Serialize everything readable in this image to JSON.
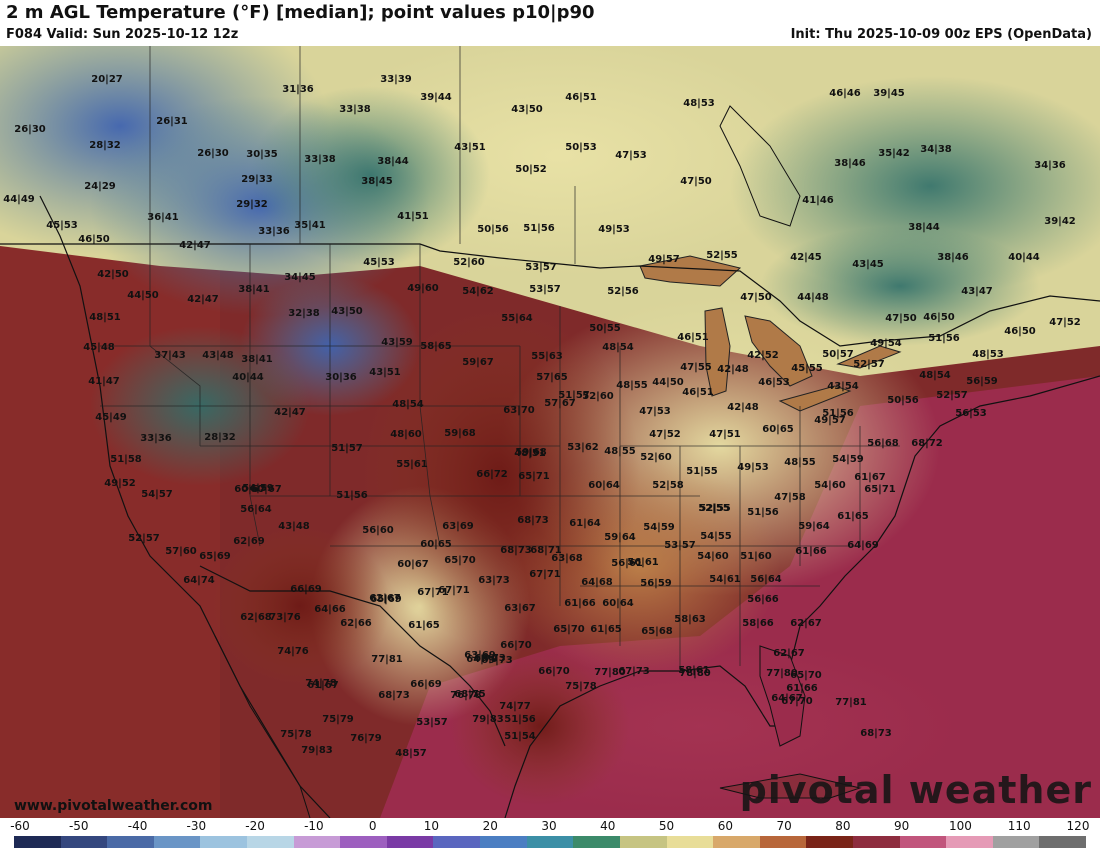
{
  "header": {
    "title": "2 m AGL Temperature (°F) [median]; point values p10|p90",
    "valid": "F084 Valid: Sun 2025-10-12 12z",
    "init": "Init: Thu 2025-10-09 00z EPS (OpenData)"
  },
  "footer": {
    "site": "www.pivotalweather.com",
    "watermark": "pivotal weather"
  },
  "colorbar": {
    "ticks": [
      "-60",
      "-50",
      "-40",
      "-30",
      "-20",
      "-10",
      "0",
      "10",
      "20",
      "30",
      "40",
      "50",
      "60",
      "70",
      "80",
      "90",
      "100",
      "110",
      "120"
    ],
    "colors": [
      "#1e2a55",
      "#34477e",
      "#4a6aa6",
      "#6a95c6",
      "#9cc3df",
      "#b8d6e6",
      "#c79bd6",
      "#9d5fbf",
      "#7a3aa5",
      "#5a66bf",
      "#4b7ec2",
      "#3c8fa6",
      "#3c8a6a",
      "#c6c482",
      "#e8dd98",
      "#d8a86a",
      "#b8673a",
      "#7a2418",
      "#8e2d3f",
      "#c1557c",
      "#e59ab6",
      "#a0a0a0",
      "#6e6e6e"
    ]
  },
  "points": [
    [
      "20",
      "27"
    ],
    [
      "31",
      "36"
    ],
    [
      "33",
      "39"
    ],
    [
      "39",
      "44"
    ],
    [
      "46",
      "51"
    ],
    [
      "48",
      "53"
    ],
    [
      "46",
      "46"
    ],
    [
      "39",
      "45"
    ],
    [
      "26",
      "30"
    ],
    [
      "26",
      "31"
    ],
    [
      "33",
      "38"
    ],
    [
      "43",
      "50"
    ],
    [
      "43",
      "51"
    ],
    [
      "50",
      "53"
    ],
    [
      "47",
      "53"
    ],
    [
      "28",
      "32"
    ],
    [
      "26",
      "30"
    ],
    [
      "30",
      "35"
    ],
    [
      "33",
      "38"
    ],
    [
      "38",
      "44"
    ],
    [
      "50",
      "52"
    ],
    [
      "38",
      "46"
    ],
    [
      "35",
      "42"
    ],
    [
      "34",
      "38"
    ],
    [
      "34",
      "36"
    ],
    [
      "24",
      "29"
    ],
    [
      "29",
      "33"
    ],
    [
      "38",
      "45"
    ],
    [
      "47",
      "50"
    ],
    [
      "41",
      "46"
    ],
    [
      "44",
      "49"
    ],
    [
      "29",
      "32"
    ],
    [
      "41",
      "51"
    ],
    [
      "36",
      "41"
    ],
    [
      "45",
      "53"
    ],
    [
      "33",
      "36"
    ],
    [
      "35",
      "41"
    ],
    [
      "50",
      "56"
    ],
    [
      "51",
      "56"
    ],
    [
      "49",
      "53"
    ],
    [
      "38",
      "44"
    ],
    [
      "39",
      "42"
    ],
    [
      "46",
      "50"
    ],
    [
      "42",
      "47"
    ],
    [
      "34",
      "45"
    ],
    [
      "45",
      "53"
    ],
    [
      "52",
      "60"
    ],
    [
      "53",
      "57"
    ],
    [
      "49",
      "57"
    ],
    [
      "52",
      "55"
    ],
    [
      "42",
      "45"
    ],
    [
      "43",
      "45"
    ],
    [
      "38",
      "46"
    ],
    [
      "40",
      "44"
    ],
    [
      "42",
      "50"
    ],
    [
      "38",
      "41"
    ],
    [
      "49",
      "60"
    ],
    [
      "54",
      "62"
    ],
    [
      "53",
      "57"
    ],
    [
      "52",
      "56"
    ],
    [
      "43",
      "47"
    ],
    [
      "44",
      "50"
    ],
    [
      "42",
      "47"
    ],
    [
      "32",
      "38"
    ],
    [
      "43",
      "50"
    ],
    [
      "55",
      "64"
    ],
    [
      "47",
      "50"
    ],
    [
      "44",
      "48"
    ],
    [
      "48",
      "51"
    ],
    [
      "47",
      "50"
    ],
    [
      "46",
      "50"
    ],
    [
      "47",
      "52"
    ],
    [
      "50",
      "55"
    ],
    [
      "48",
      "54"
    ],
    [
      "51",
      "56"
    ],
    [
      "46",
      "50"
    ],
    [
      "45",
      "48"
    ],
    [
      "37",
      "43"
    ],
    [
      "43",
      "48"
    ],
    [
      "43",
      "59"
    ],
    [
      "58",
      "65"
    ],
    [
      "46",
      "51"
    ],
    [
      "50",
      "57"
    ],
    [
      "49",
      "54"
    ],
    [
      "48",
      "53"
    ],
    [
      "41",
      "47"
    ],
    [
      "38",
      "41"
    ],
    [
      "40",
      "44"
    ],
    [
      "30",
      "36"
    ],
    [
      "43",
      "51"
    ],
    [
      "59",
      "67"
    ],
    [
      "55",
      "63"
    ],
    [
      "42",
      "52"
    ],
    [
      "52",
      "57"
    ],
    [
      "45",
      "55"
    ],
    [
      "57",
      "65"
    ],
    [
      "47",
      "55"
    ],
    [
      "42",
      "48"
    ],
    [
      "48",
      "54"
    ],
    [
      "56",
      "59"
    ],
    [
      "46",
      "53"
    ],
    [
      "43",
      "54"
    ],
    [
      "45",
      "49"
    ],
    [
      "42",
      "47"
    ],
    [
      "48",
      "54"
    ],
    [
      "63",
      "70"
    ],
    [
      "57",
      "67"
    ],
    [
      "52",
      "60"
    ],
    [
      "48",
      "55"
    ],
    [
      "44",
      "50"
    ],
    [
      "46",
      "51"
    ],
    [
      "51",
      "57"
    ],
    [
      "50",
      "56"
    ],
    [
      "52",
      "57"
    ],
    [
      "56",
      "53"
    ],
    [
      "33",
      "36"
    ],
    [
      "28",
      "32"
    ],
    [
      "48",
      "60"
    ],
    [
      "59",
      "68"
    ],
    [
      "47",
      "53"
    ],
    [
      "42",
      "48"
    ],
    [
      "51",
      "56"
    ],
    [
      "49",
      "57"
    ],
    [
      "51",
      "58"
    ],
    [
      "51",
      "57"
    ],
    [
      "55",
      "61"
    ],
    [
      "59",
      "68"
    ],
    [
      "53",
      "62"
    ],
    [
      "48",
      "55"
    ],
    [
      "47",
      "52"
    ],
    [
      "47",
      "51"
    ],
    [
      "60",
      "65"
    ],
    [
      "56",
      "68"
    ],
    [
      "68",
      "72"
    ],
    [
      "48",
      "51"
    ],
    [
      "60",
      "67"
    ],
    [
      "49",
      "52"
    ],
    [
      "66",
      "72"
    ],
    [
      "65",
      "71"
    ],
    [
      "52",
      "60"
    ],
    [
      "51",
      "55"
    ],
    [
      "49",
      "53"
    ],
    [
      "48",
      "55"
    ],
    [
      "54",
      "59"
    ],
    [
      "60",
      "67"
    ],
    [
      "54",
      "57"
    ],
    [
      "54",
      "59"
    ],
    [
      "60",
      "64"
    ],
    [
      "52",
      "58"
    ],
    [
      "54",
      "60"
    ],
    [
      "61",
      "67"
    ],
    [
      "56",
      "64"
    ],
    [
      "51",
      "56"
    ],
    [
      "47",
      "58"
    ],
    [
      "65",
      "71"
    ],
    [
      "52",
      "55"
    ],
    [
      "43",
      "48"
    ],
    [
      "63",
      "69"
    ],
    [
      "68",
      "73"
    ],
    [
      "61",
      "64"
    ],
    [
      "52",
      "55"
    ],
    [
      "51",
      "56"
    ],
    [
      "61",
      "65"
    ],
    [
      "52",
      "57"
    ],
    [
      "62",
      "69"
    ],
    [
      "56",
      "60"
    ],
    [
      "54",
      "59"
    ],
    [
      "59",
      "64"
    ],
    [
      "57",
      "60"
    ],
    [
      "60",
      "65"
    ],
    [
      "59",
      "64"
    ],
    [
      "54",
      "55"
    ],
    [
      "61",
      "66"
    ],
    [
      "64",
      "69"
    ],
    [
      "65",
      "69"
    ],
    [
      "68",
      "73"
    ],
    [
      "53",
      "57"
    ],
    [
      "51",
      "60"
    ],
    [
      "68",
      "71"
    ],
    [
      "60",
      "67"
    ],
    [
      "65",
      "70"
    ],
    [
      "63",
      "68"
    ],
    [
      "56",
      "61"
    ],
    [
      "54",
      "60"
    ],
    [
      "62",
      "67"
    ],
    [
      "56",
      "61"
    ],
    [
      "64",
      "74"
    ],
    [
      "66",
      "69"
    ],
    [
      "67",
      "71"
    ],
    [
      "63",
      "73"
    ],
    [
      "67",
      "71"
    ],
    [
      "64",
      "68"
    ],
    [
      "56",
      "59"
    ],
    [
      "54",
      "61"
    ],
    [
      "56",
      "64"
    ],
    [
      "62",
      "68"
    ],
    [
      "64",
      "66"
    ],
    [
      "65",
      "69"
    ],
    [
      "67",
      "71"
    ],
    [
      "63",
      "67"
    ],
    [
      "61",
      "66"
    ],
    [
      "60",
      "64"
    ],
    [
      "56",
      "66"
    ],
    [
      "73",
      "76"
    ],
    [
      "62",
      "66"
    ],
    [
      "61",
      "65"
    ],
    [
      "61",
      "65"
    ],
    [
      "65",
      "68"
    ],
    [
      "58",
      "63"
    ],
    [
      "58",
      "66"
    ],
    [
      "62",
      "67"
    ],
    [
      "74",
      "76"
    ],
    [
      "65",
      "70"
    ],
    [
      "66",
      "70"
    ],
    [
      "63",
      "69"
    ],
    [
      "62",
      "67"
    ],
    [
      "69",
      "73"
    ],
    [
      "77",
      "80"
    ],
    [
      "78",
      "80"
    ],
    [
      "74",
      "78"
    ],
    [
      "66",
      "70"
    ],
    [
      "69",
      "73"
    ],
    [
      "65",
      "70"
    ],
    [
      "77",
      "81"
    ],
    [
      "64",
      "70"
    ],
    [
      "67",
      "73"
    ],
    [
      "58",
      "61"
    ],
    [
      "61",
      "67"
    ],
    [
      "66",
      "69"
    ],
    [
      "68",
      "75"
    ],
    [
      "77",
      "80"
    ],
    [
      "75",
      "78"
    ],
    [
      "64",
      "67"
    ],
    [
      "61",
      "66"
    ],
    [
      "68",
      "73"
    ],
    [
      "76",
      "78"
    ],
    [
      "74",
      "77"
    ],
    [
      "67",
      "70"
    ],
    [
      "77",
      "81"
    ],
    [
      "75",
      "79"
    ],
    [
      "53",
      "57"
    ],
    [
      "79",
      "83"
    ],
    [
      "51",
      "56"
    ],
    [
      "75",
      "78"
    ],
    [
      "76",
      "79"
    ],
    [
      "51",
      "54"
    ],
    [
      "68",
      "73"
    ],
    [
      "79",
      "83"
    ],
    [
      "48",
      "57"
    ]
  ]
}
